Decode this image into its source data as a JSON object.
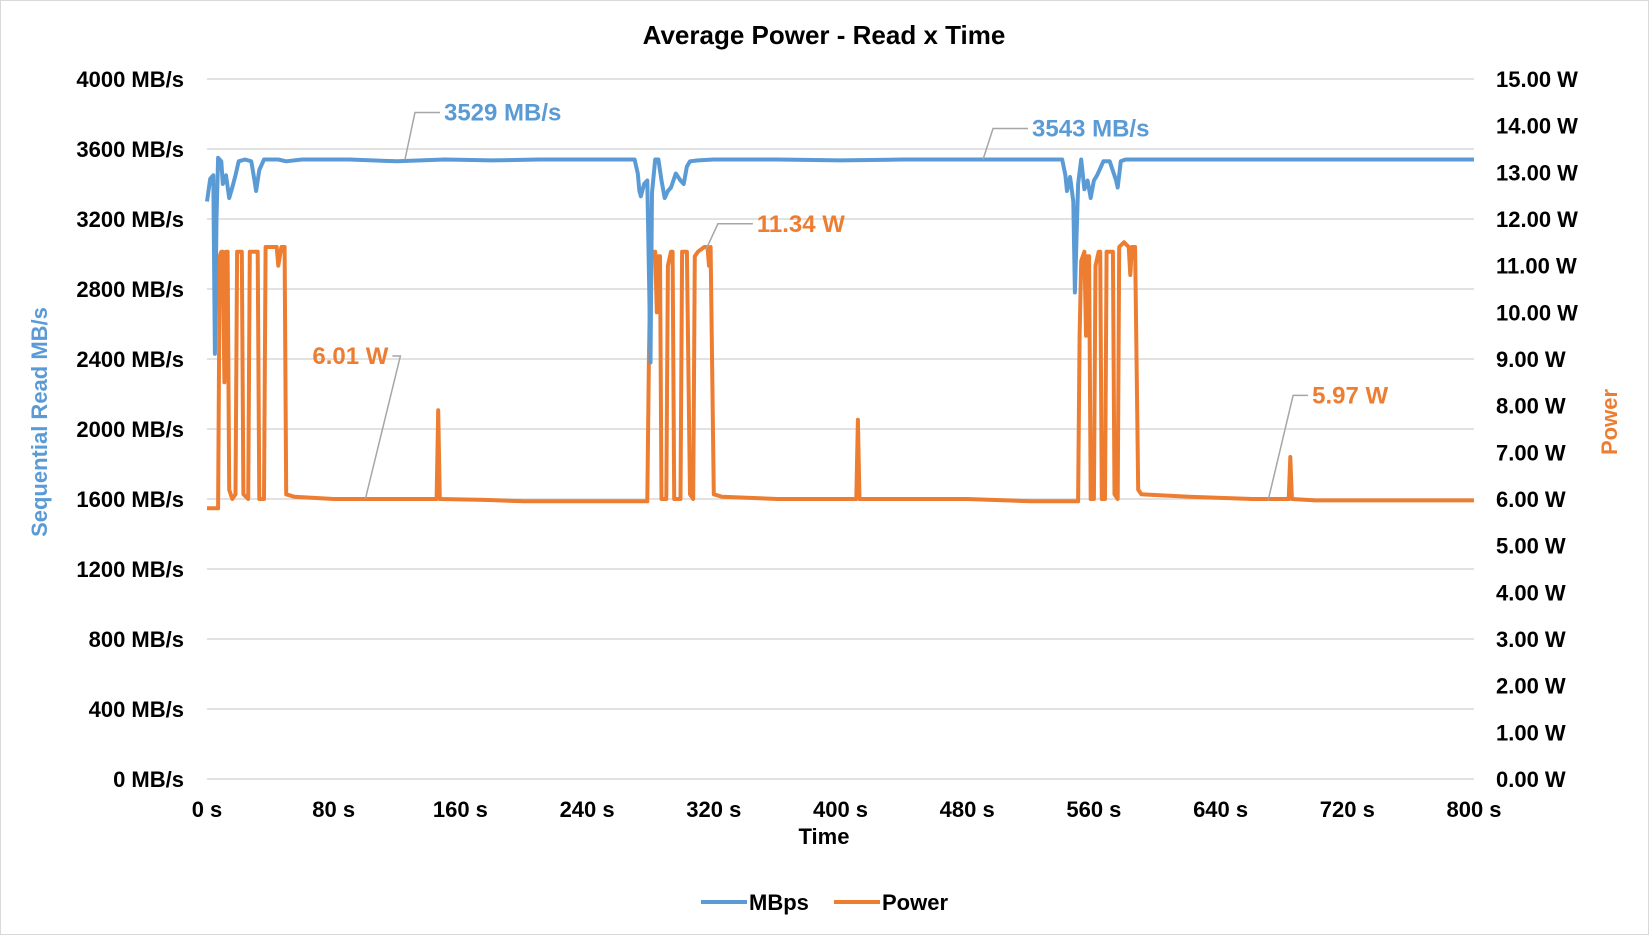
{
  "chart_data": {
    "type": "line",
    "title": "Average Power - Read x Time",
    "xlabel": "Time",
    "ylabel_left": "Sequential Read MB/s",
    "ylabel_right": "Power",
    "xlim": [
      0,
      800
    ],
    "ylim_left": [
      0,
      4000
    ],
    "ylim_right": [
      0,
      15
    ],
    "x_ticks": [
      "0 s",
      "80 s",
      "160 s",
      "240 s",
      "320 s",
      "400 s",
      "480 s",
      "560 s",
      "640 s",
      "720 s",
      "800 s"
    ],
    "y_left_ticks": [
      "0 MB/s",
      "400 MB/s",
      "800 MB/s",
      "1200 MB/s",
      "1600 MB/s",
      "2000 MB/s",
      "2400 MB/s",
      "2800 MB/s",
      "3200 MB/s",
      "3600 MB/s",
      "4000 MB/s"
    ],
    "y_right_ticks": [
      "0.00 W",
      "1.00 W",
      "2.00 W",
      "3.00 W",
      "4.00 W",
      "5.00 W",
      "6.00 W",
      "7.00 W",
      "8.00 W",
      "9.00 W",
      "10.00 W",
      "11.00 W",
      "12.00 W",
      "13.00 W",
      "14.00 W",
      "15.00 W"
    ],
    "grid": true,
    "legend_position": "bottom",
    "series": [
      {
        "name": "MBps",
        "axis": "left",
        "color": "#5b9bd5",
        "points": [
          [
            0,
            3300
          ],
          [
            2,
            3430
          ],
          [
            4,
            3450
          ],
          [
            5,
            2430
          ],
          [
            6,
            3200
          ],
          [
            7,
            3550
          ],
          [
            9,
            3530
          ],
          [
            10,
            3400
          ],
          [
            12,
            3450
          ],
          [
            14,
            3320
          ],
          [
            16,
            3380
          ],
          [
            18,
            3450
          ],
          [
            20,
            3530
          ],
          [
            24,
            3540
          ],
          [
            28,
            3530
          ],
          [
            30,
            3420
          ],
          [
            31,
            3360
          ],
          [
            33,
            3480
          ],
          [
            36,
            3540
          ],
          [
            45,
            3540
          ],
          [
            50,
            3530
          ],
          [
            60,
            3540
          ],
          [
            90,
            3540
          ],
          [
            120,
            3530
          ],
          [
            150,
            3540
          ],
          [
            180,
            3535
          ],
          [
            210,
            3540
          ],
          [
            240,
            3540
          ],
          [
            270,
            3540
          ],
          [
            272,
            3460
          ],
          [
            273,
            3360
          ],
          [
            274,
            3330
          ],
          [
            276,
            3400
          ],
          [
            278,
            3420
          ],
          [
            280,
            2380
          ],
          [
            281,
            3350
          ],
          [
            283,
            3540
          ],
          [
            285,
            3540
          ],
          [
            287,
            3420
          ],
          [
            289,
            3320
          ],
          [
            291,
            3360
          ],
          [
            293,
            3380
          ],
          [
            296,
            3460
          ],
          [
            299,
            3420
          ],
          [
            301,
            3400
          ],
          [
            303,
            3500
          ],
          [
            305,
            3530
          ],
          [
            310,
            3535
          ],
          [
            320,
            3540
          ],
          [
            360,
            3540
          ],
          [
            400,
            3535
          ],
          [
            440,
            3540
          ],
          [
            480,
            3540
          ],
          [
            520,
            3540
          ],
          [
            540,
            3540
          ],
          [
            542,
            3450
          ],
          [
            543,
            3360
          ],
          [
            545,
            3440
          ],
          [
            547,
            3300
          ],
          [
            548,
            2780
          ],
          [
            550,
            3400
          ],
          [
            552,
            3540
          ],
          [
            554,
            3370
          ],
          [
            556,
            3420
          ],
          [
            558,
            3320
          ],
          [
            560,
            3420
          ],
          [
            562,
            3450
          ],
          [
            566,
            3530
          ],
          [
            570,
            3530
          ],
          [
            574,
            3420
          ],
          [
            575,
            3380
          ],
          [
            577,
            3530
          ],
          [
            580,
            3540
          ],
          [
            600,
            3540
          ],
          [
            640,
            3540
          ],
          [
            680,
            3540
          ],
          [
            720,
            3540
          ],
          [
            760,
            3540
          ],
          [
            800,
            3540
          ]
        ]
      },
      {
        "name": "Power",
        "axis": "right",
        "color": "#ed7d31",
        "points": [
          [
            0,
            5.8
          ],
          [
            7,
            5.8
          ],
          [
            8,
            11.2
          ],
          [
            9,
            11.3
          ],
          [
            10,
            11.3
          ],
          [
            11,
            8.5
          ],
          [
            12,
            11.3
          ],
          [
            13,
            11.3
          ],
          [
            14,
            6.2
          ],
          [
            16,
            6.0
          ],
          [
            18,
            6.1
          ],
          [
            19,
            11.3
          ],
          [
            20,
            11.3
          ],
          [
            22,
            11.3
          ],
          [
            23,
            6.1
          ],
          [
            26,
            6.0
          ],
          [
            27,
            11.3
          ],
          [
            30,
            11.3
          ],
          [
            32,
            11.3
          ],
          [
            33,
            6.0
          ],
          [
            34,
            6.0
          ],
          [
            36,
            6.0
          ],
          [
            37,
            11.4
          ],
          [
            40,
            11.4
          ],
          [
            44,
            11.4
          ],
          [
            45,
            11.0
          ],
          [
            47,
            11.4
          ],
          [
            49,
            11.4
          ],
          [
            50,
            6.1
          ],
          [
            55,
            6.05
          ],
          [
            80,
            6.0
          ],
          [
            100,
            6.0
          ],
          [
            130,
            6.0
          ],
          [
            145,
            6.0
          ],
          [
            146,
            7.9
          ],
          [
            147,
            6.0
          ],
          [
            175,
            5.98
          ],
          [
            200,
            5.95
          ],
          [
            240,
            5.95
          ],
          [
            270,
            5.95
          ],
          [
            278,
            5.95
          ],
          [
            279,
            9.0
          ],
          [
            280,
            11.1
          ],
          [
            282,
            11.3
          ],
          [
            283,
            11.3
          ],
          [
            284,
            10.0
          ],
          [
            285,
            11.2
          ],
          [
            286,
            11.2
          ],
          [
            287,
            6.0
          ],
          [
            290,
            6.0
          ],
          [
            291,
            11.0
          ],
          [
            293,
            11.3
          ],
          [
            294,
            11.3
          ],
          [
            295,
            6.0
          ],
          [
            298,
            6.0
          ],
          [
            299,
            6.0
          ],
          [
            300,
            11.3
          ],
          [
            302,
            11.3
          ],
          [
            303,
            11.3
          ],
          [
            305,
            6.1
          ],
          [
            307,
            6.0
          ],
          [
            308,
            11.2
          ],
          [
            310,
            11.3
          ],
          [
            314,
            11.4
          ],
          [
            316,
            11.4
          ],
          [
            317,
            11.0
          ],
          [
            318,
            11.4
          ],
          [
            320,
            6.1
          ],
          [
            325,
            6.05
          ],
          [
            360,
            6.0
          ],
          [
            400,
            6.0
          ],
          [
            410,
            6.0
          ],
          [
            411,
            7.7
          ],
          [
            412,
            6.0
          ],
          [
            440,
            6.0
          ],
          [
            480,
            6.0
          ],
          [
            520,
            5.95
          ],
          [
            550,
            5.95
          ],
          [
            551,
            9.5
          ],
          [
            552,
            11.1
          ],
          [
            554,
            11.3
          ],
          [
            555,
            9.5
          ],
          [
            556,
            11.2
          ],
          [
            557,
            11.2
          ],
          [
            558,
            6.0
          ],
          [
            560,
            6.0
          ],
          [
            561,
            11.0
          ],
          [
            563,
            11.3
          ],
          [
            564,
            11.3
          ],
          [
            565,
            6.0
          ],
          [
            567,
            6.0
          ],
          [
            568,
            11.3
          ],
          [
            570,
            11.3
          ],
          [
            572,
            11.3
          ],
          [
            573,
            6.1
          ],
          [
            575,
            6.0
          ],
          [
            576,
            11.4
          ],
          [
            579,
            11.5
          ],
          [
            582,
            11.4
          ],
          [
            583,
            10.8
          ],
          [
            584,
            11.4
          ],
          [
            586,
            11.4
          ],
          [
            588,
            6.2
          ],
          [
            590,
            6.1
          ],
          [
            620,
            6.05
          ],
          [
            660,
            6.0
          ],
          [
            683,
            6.0
          ],
          [
            684,
            6.9
          ],
          [
            685,
            6.0
          ],
          [
            700,
            5.97
          ],
          [
            740,
            5.97
          ],
          [
            780,
            5.97
          ],
          [
            800,
            5.97
          ]
        ]
      }
    ],
    "annotations": [
      {
        "text": "3529 MB/s",
        "axis": "left",
        "color": "#5b9bd5",
        "x": 125,
        "y": 3540
      },
      {
        "text": "3543 MB/s",
        "axis": "left",
        "color": "#5b9bd5",
        "x": 490,
        "y": 3540
      },
      {
        "text": "11.34 W",
        "axis": "right",
        "color": "#ed7d31",
        "x": 315,
        "y": 11.34
      },
      {
        "text": "6.01 W",
        "axis": "right",
        "color": "#ed7d31",
        "x": 100,
        "y": 6.0
      },
      {
        "text": "5.97 W",
        "axis": "right",
        "color": "#ed7d31",
        "x": 670,
        "y": 5.97
      }
    ]
  }
}
